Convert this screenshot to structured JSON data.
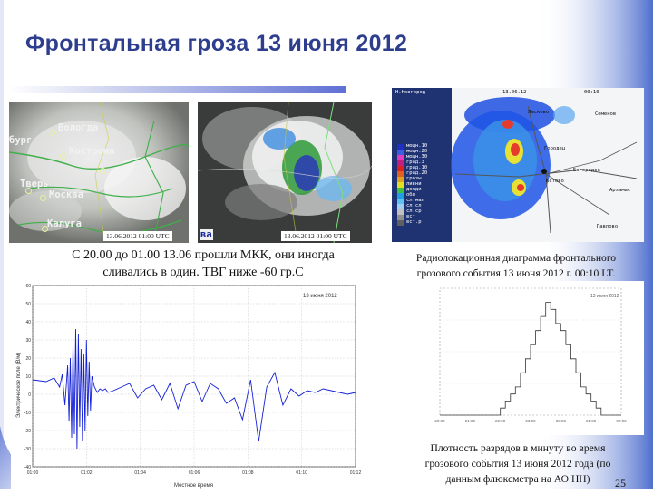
{
  "slide": {
    "title": "Фронтальная гроза 13 июня 2012",
    "page_number": "25"
  },
  "satellite_left": {
    "timestamp": "13.06.2012 01:00 UTC",
    "cities": [
      "Вологда",
      "бург",
      "Кострома",
      "Тверь",
      "Москва",
      "Калуга"
    ]
  },
  "satellite_right": {
    "timestamp": "13.06.2012 01:00 UTC",
    "fragment_label": "ва"
  },
  "caption_satellite": {
    "line1": "С 20.00 до 01.00 13.06 прошли МКК, они иногда",
    "line2": "сливались в один. ТВГ ниже -60 гр.С"
  },
  "radar": {
    "header": "Н.Новгород",
    "date": "13.06.12",
    "time": "00:10",
    "legend": [
      "мощн.10",
      "мощн.20",
      "мощн.30",
      "град.3",
      "град.10",
      "град.20",
      "грозы",
      "ливни",
      "дожди",
      "обл",
      "сл.мал",
      "сл.сл",
      "сл.ср",
      "вст",
      "вст.р"
    ],
    "towns": [
      "Лысково",
      "Семенов",
      "Городец",
      "Богородск",
      "Кстово",
      "Арзамас",
      "Павлово"
    ]
  },
  "caption_radar": {
    "line1": "Радиолокационная диаграмма фронтального",
    "line2": "грозового события 13 июня 2012 г. 00:10 LT."
  },
  "field_chart": {
    "legend_text": "13 июня 2012",
    "xlabel": "Местное время",
    "ylabel": "Электрическое поле (В/м)",
    "x_ticks": [
      "01:00",
      "01:02",
      "01:04",
      "01:06",
      "01:08",
      "01:10",
      "01:12"
    ],
    "y_ticks": [
      "60",
      "50",
      "40",
      "30",
      "20",
      "10",
      "0",
      "-10",
      "-20",
      "-30",
      "-40"
    ]
  },
  "caption_density": {
    "line1": "Плотность разрядов в минуту во время",
    "line2": "грозового события 13 июня 2012 года (по",
    "line3": "данным флюксметра на АО НН)"
  },
  "chart_data": [
    {
      "type": "line",
      "title": "13 июня 2012",
      "xlabel": "Местное время",
      "ylabel": "Электрическое поле (В/м)",
      "x_ticks": [
        "01:00",
        "01:02",
        "01:04",
        "01:06",
        "01:08",
        "01:10",
        "01:12"
      ],
      "ylim": [
        -40,
        60
      ],
      "series": [
        {
          "x_minutes": [
            0.0,
            0.5,
            0.8,
            1.0,
            1.1,
            1.2,
            1.3,
            1.35,
            1.4,
            1.45,
            1.5,
            1.55,
            1.6,
            1.65,
            1.7,
            1.75,
            1.8,
            1.85,
            1.9,
            1.95,
            2.0,
            2.05,
            2.1,
            2.15,
            2.2,
            2.3,
            2.4,
            2.5,
            2.6,
            2.7,
            2.8,
            3.0,
            3.3,
            3.6,
            3.9,
            4.2,
            4.5,
            4.8,
            5.1,
            5.4,
            5.7,
            6.0,
            6.3,
            6.6,
            6.9,
            7.2,
            7.5,
            7.8,
            8.1,
            8.4,
            8.7,
            9.0,
            9.3,
            9.6,
            9.9,
            10.2,
            10.5,
            10.8,
            11.1,
            11.4,
            11.7,
            12.0
          ],
          "y": [
            8,
            7,
            9,
            4,
            11,
            -6,
            16,
            -15,
            20,
            -24,
            28,
            -22,
            36,
            -30,
            33,
            -18,
            25,
            -26,
            22,
            -20,
            30,
            -12,
            18,
            -9,
            10,
            4,
            1,
            3,
            2,
            3,
            1,
            2,
            4,
            6,
            -2,
            3,
            5,
            -3,
            6,
            -8,
            5,
            7,
            -4,
            6,
            3,
            -5,
            -2,
            -14,
            8,
            -26,
            4,
            12,
            -6,
            3,
            -1,
            2,
            1,
            3,
            2,
            1,
            0,
            1
          ]
        }
      ]
    },
    {
      "type": "bar",
      "title": "13 июня 2012",
      "xlabel": "",
      "ylabel": "",
      "x_ticks": [
        "20:00",
        "21:00",
        "22:00",
        "23:00",
        "00:00",
        "01:00",
        "02:00"
      ],
      "values": [
        0,
        0,
        0,
        0,
        0,
        0,
        0,
        0,
        0,
        0,
        0,
        0,
        1,
        2,
        3,
        4,
        6,
        8,
        10,
        12,
        14,
        16,
        15,
        13,
        12,
        10,
        8,
        6,
        4,
        3,
        2,
        1,
        0,
        0,
        0,
        0
      ]
    }
  ]
}
